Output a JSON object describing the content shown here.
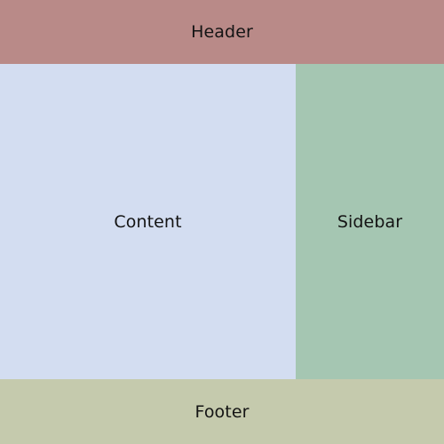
{
  "layout": {
    "header": {
      "label": "Header",
      "color": "#b98a88"
    },
    "content": {
      "label": "Content",
      "color": "#d3ddf1"
    },
    "sidebar": {
      "label": "Sidebar",
      "color": "#a5c6b2"
    },
    "footer": {
      "label": "Footer",
      "color": "#c5caad"
    }
  }
}
